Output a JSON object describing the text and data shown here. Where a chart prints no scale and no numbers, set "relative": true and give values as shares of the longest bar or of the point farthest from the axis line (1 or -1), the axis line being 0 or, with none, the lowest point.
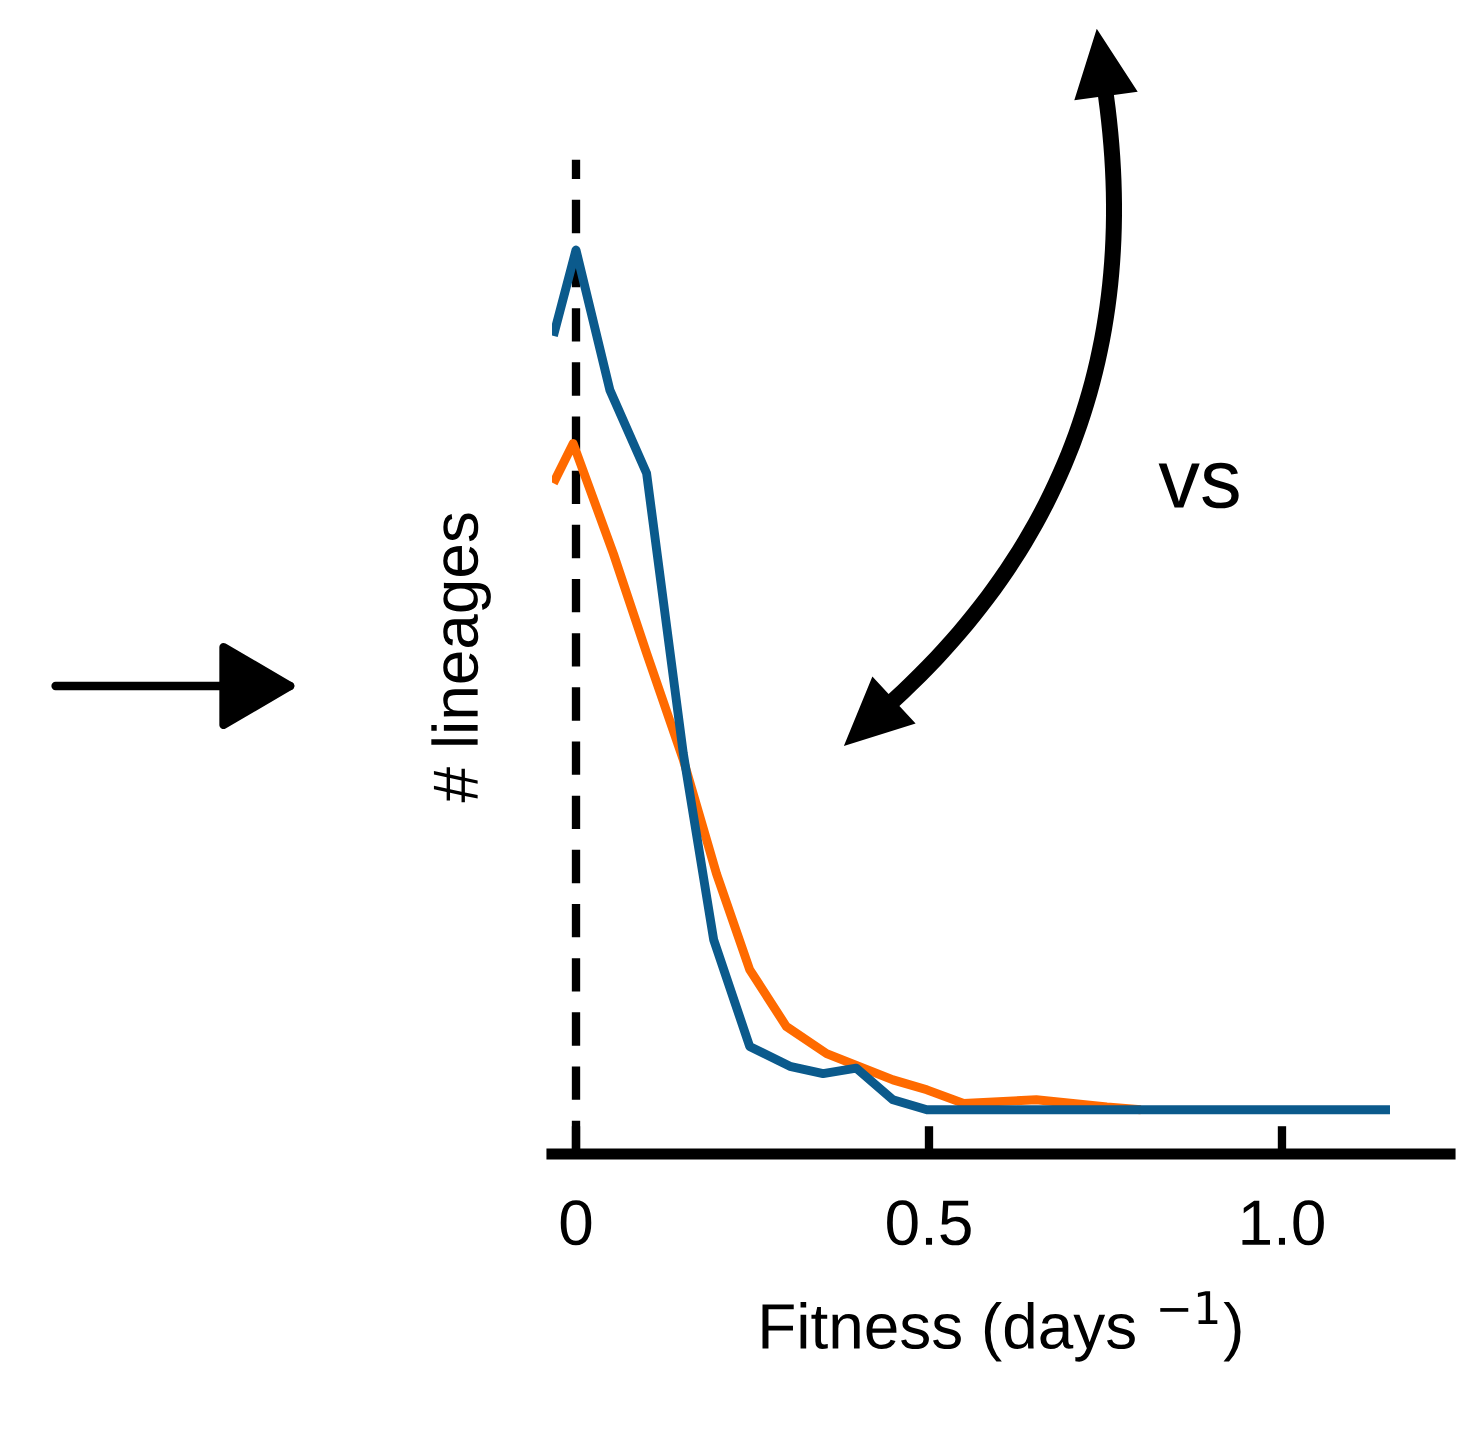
{
  "chart_data": {
    "type": "line",
    "relative": true,
    "xlabel": "Fitness (days $^{−1}$)",
    "ylabel": "# lineages",
    "xlim": [
      -0.034,
      1.238
    ],
    "xticks": [
      0,
      0.5,
      {
        "value": 1.0,
        "label": "1.0"
      }
    ],
    "annotations": [
      "vs"
    ],
    "ref_lines": [
      {
        "axis": "x",
        "value": 0,
        "color": "#000000",
        "line_style": "dashed"
      }
    ],
    "series": [
      {
        "color": "#ff6a00",
        "x": [
          -0.032,
          -0.004,
          0.053,
          0.1,
          0.152,
          0.199,
          0.246,
          0.298,
          0.355,
          0.449,
          0.497,
          0.549,
          0.652,
          0.752,
          0.8
        ],
        "values": [
          0.742,
          0.786,
          0.664,
          0.554,
          0.436,
          0.31,
          0.204,
          0.141,
          0.111,
          0.082,
          0.071,
          0.056,
          0.06,
          0.052,
          0.049
        ]
      },
      {
        "color": "#0b5a8c",
        "x": [
          -0.032,
          0,
          0.048,
          0.1,
          0.152,
          0.195,
          0.246,
          0.303,
          0.35,
          0.397,
          0.449,
          0.497,
          1.153
        ],
        "values": [
          0.905,
          1,
          0.845,
          0.753,
          0.443,
          0.237,
          0.119,
          0.097,
          0.089,
          0.095,
          0.06,
          0.049,
          0.049
        ]
      }
    ],
    "grid": false,
    "legend": false
  }
}
